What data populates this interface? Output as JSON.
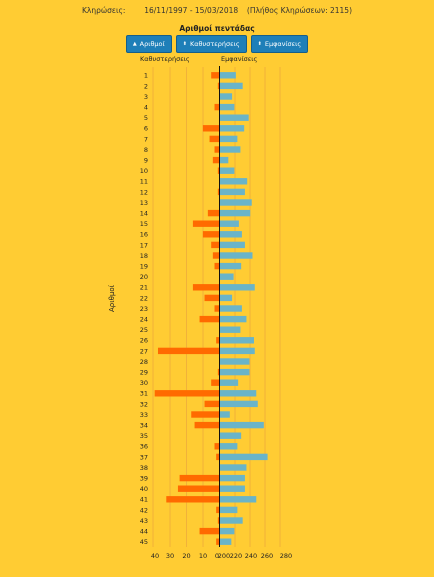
{
  "header": {
    "label": "Κληρώσεις:",
    "range": "16/11/1997 - 15/03/2018",
    "count": "(Πλήθος Κληρώσεων: 2115)"
  },
  "panel_title": "Αριθμοί πεντάδας",
  "buttons": [
    {
      "label": "Αριθμοί"
    },
    {
      "label": "Καθυστερήσεις"
    },
    {
      "label": "Εμφανίσεις"
    }
  ],
  "chart_data": {
    "type": "bar",
    "ylabel": "Αριθμοί",
    "left_title": "Καθυστερήσεις",
    "right_title": "Εμφανίσεις",
    "categories": [
      1,
      2,
      3,
      4,
      5,
      6,
      7,
      8,
      9,
      10,
      11,
      12,
      13,
      14,
      15,
      16,
      17,
      18,
      19,
      20,
      21,
      22,
      23,
      24,
      25,
      26,
      27,
      28,
      29,
      30,
      31,
      32,
      33,
      34,
      35,
      36,
      37,
      38,
      39,
      40,
      41,
      42,
      43,
      44,
      45
    ],
    "left_axis": {
      "ticks": [
        40,
        30,
        20,
        10,
        0
      ],
      "range": [
        0,
        40
      ]
    },
    "right_axis": {
      "ticks": [
        200,
        220,
        240,
        260,
        280
      ],
      "range": [
        200,
        290
      ]
    },
    "series": [
      {
        "name": "Καθυστερήσεις",
        "color": "#FF6A00",
        "values": [
          5,
          1,
          0,
          3,
          0,
          10,
          6,
          3,
          4,
          1,
          0,
          1,
          0,
          7,
          16,
          10,
          5,
          4,
          3,
          0,
          16,
          9,
          3,
          12,
          0,
          2,
          37,
          0,
          1,
          5,
          39,
          9,
          17,
          15,
          0,
          3,
          2,
          0,
          24,
          25,
          32,
          2,
          1,
          12,
          2
        ]
      },
      {
        "name": "Εμφανίσεις",
        "color": "#6AB4C8",
        "values": [
          221,
          230,
          216,
          219,
          238,
          232,
          223,
          227,
          211,
          219,
          236,
          233,
          242,
          240,
          225,
          229,
          233,
          243,
          228,
          218,
          246,
          216,
          229,
          235,
          227,
          245,
          246,
          239,
          239,
          224,
          248,
          250,
          213,
          258,
          228,
          223,
          263,
          235,
          233,
          233,
          248,
          223,
          230,
          219,
          215
        ]
      }
    ]
  }
}
